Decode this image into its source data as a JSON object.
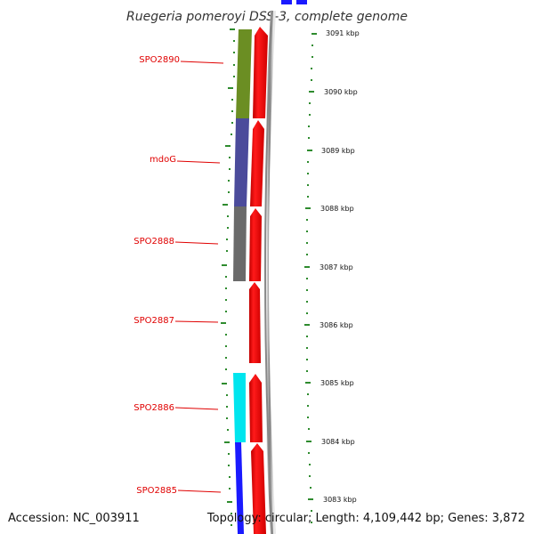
{
  "title": "Ruegeria pomeroyi DSS-3, complete genome",
  "footer": {
    "accession": "Accession: NC_003911",
    "topology": "Topology: circular; Length: 4,109,442 bp; Genes: 3,872"
  },
  "gene_labels": [
    "SPO2890",
    "mdoG",
    "SPO2888",
    "SPO2887",
    "SPO2886",
    "SPO2885"
  ],
  "scale_labels": [
    "3091 kbp",
    "3090 kbp",
    "3089 kbp",
    "3088 kbp",
    "3087 kbp",
    "3086 kbp",
    "3085 kbp",
    "3084 kbp",
    "3083 kbp"
  ],
  "colors": {
    "gene_label": "#e00000",
    "cds_strand": "#ff0000",
    "tick": "#2e8b2e",
    "cog_olive": "#6b8e23",
    "cog_slate": "#4b4b9b",
    "cog_gray": "#6a6a6a",
    "cog_cyan": "#00e5ee",
    "cog_blue": "#1a1aff",
    "backbone": "#8a8a8a"
  }
}
